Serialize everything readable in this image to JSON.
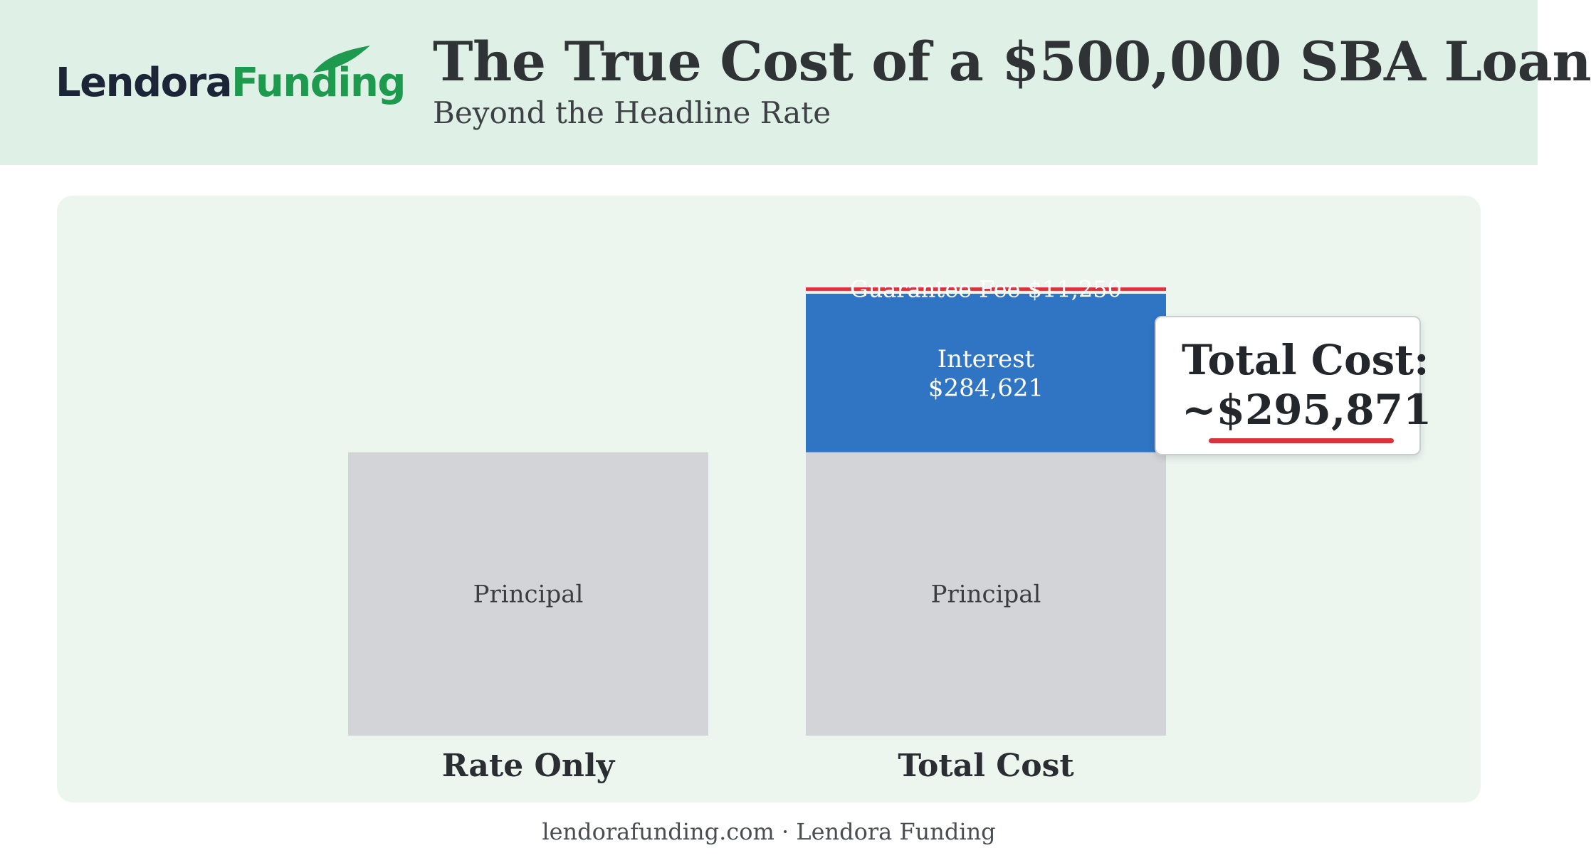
{
  "brand": {
    "name_part1": "Lendora",
    "name_part2": "Funding",
    "accent": "#1e9a4e",
    "dark": "#1c2438"
  },
  "header": {
    "title": "The True Cost of a $500,000 SBA Loan",
    "subtitle": "Beyond the Headline Rate"
  },
  "chart_data": {
    "type": "bar",
    "stacked": true,
    "categories": [
      "Rate Only",
      "Total Cost"
    ],
    "series": [
      {
        "label": "Principal",
        "values": [
          500000,
          500000
        ],
        "color": "#d3d4d8"
      },
      {
        "label": "Interest $284,621",
        "label_lines": [
          "Interest",
          "$284,621"
        ],
        "values": [
          0,
          284621
        ],
        "color": "#3074c4"
      },
      {
        "label": "Guarantee Fee $11,250",
        "values": [
          0,
          11250
        ],
        "color": "#d8333b"
      }
    ],
    "ylim": [
      0,
      910000
    ],
    "grid": false
  },
  "callout": {
    "label": "Total Cost:",
    "value": "~$295,871",
    "underline_color": "#d8323a"
  },
  "footer": {
    "text": "lendorafunding.com · Lendora Funding"
  }
}
